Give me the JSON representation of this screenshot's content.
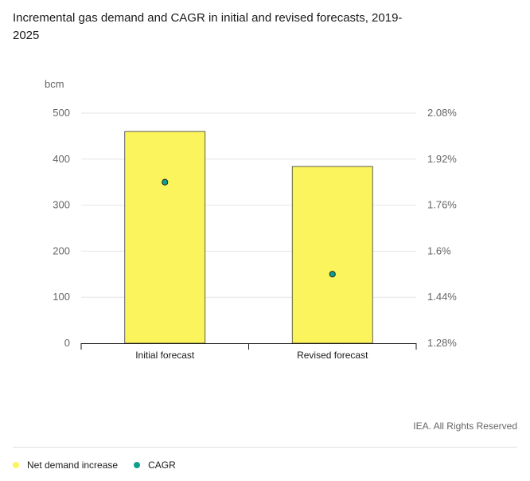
{
  "chart_data": {
    "type": "bar",
    "title": "Incremental gas demand and CAGR in initial and revised forecasts, 2019-2025",
    "categories": [
      "Initial forecast",
      "Revised forecast"
    ],
    "y_axis": {
      "unit_label": "bcm",
      "range": [
        0,
        500
      ],
      "ticks": [
        "0",
        "100",
        "200",
        "300",
        "400",
        "500"
      ]
    },
    "y2_axis": {
      "range": [
        1.28,
        2.08
      ],
      "ticks": [
        "1.28%",
        "1.44%",
        "1.6%",
        "1.76%",
        "1.92%",
        "2.08%"
      ]
    },
    "series": [
      {
        "name": "Net demand increase",
        "type": "bar",
        "axis": "left",
        "values": [
          460,
          384
        ],
        "color": "#fbf45c"
      },
      {
        "name": "CAGR",
        "type": "scatter",
        "axis": "right",
        "values": [
          1.84,
          1.52
        ],
        "color": "#0f9f8f"
      }
    ],
    "grid": true,
    "legend_position": "bottom-left"
  },
  "credit": "IEA. All Rights Reserved"
}
